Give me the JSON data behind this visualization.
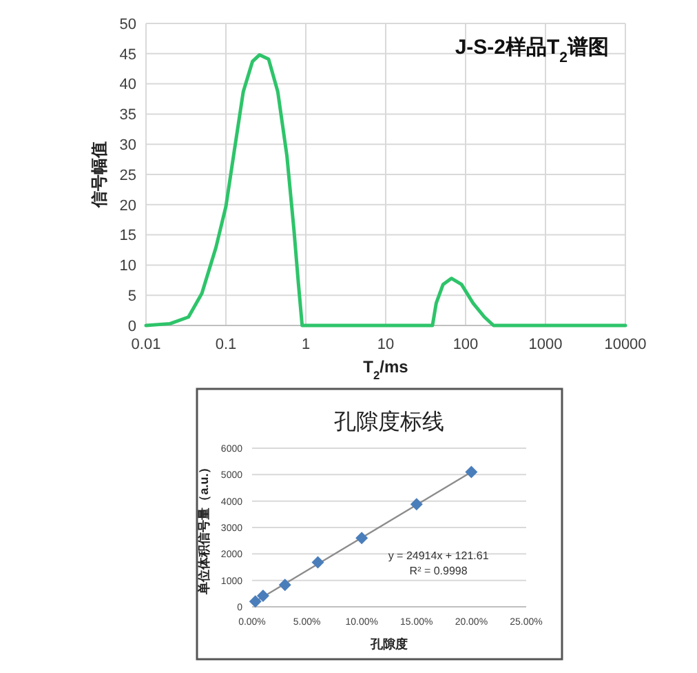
{
  "chart_data": [
    {
      "type": "line",
      "title": "J-S-2样品T$_{2}$谱图",
      "xlabel": "T$_{2}$/ms",
      "ylabel": "信号幅值",
      "log": "x",
      "xlim": [
        0.01,
        10000
      ],
      "xticks": [
        0.01,
        0.1,
        1,
        10,
        100,
        1000,
        10000
      ],
      "ylim": [
        0,
        50
      ],
      "yticks": [
        0,
        5,
        10,
        15,
        20,
        25,
        30,
        35,
        40,
        45,
        50
      ],
      "grid": true,
      "series": [
        {
          "color": "#2ec46a",
          "x": [
            0.01,
            0.02,
            0.034,
            0.05,
            0.075,
            0.1,
            0.127,
            0.165,
            0.215,
            0.263,
            0.342,
            0.446,
            0.58,
            0.71,
            0.81,
            0.9,
            38.5,
            42.9,
            52.3,
            66.4,
            88.8,
            124,
            172,
            224,
            10000
          ],
          "values": [
            0,
            0.3,
            1.4,
            5.3,
            12.9,
            19.7,
            28.8,
            38.7,
            43.7,
            44.8,
            44.1,
            38.7,
            28.1,
            15.9,
            6.8,
            0,
            0,
            3.7,
            6.8,
            7.8,
            6.8,
            3.7,
            1.4,
            0,
            0
          ]
        }
      ]
    },
    {
      "type": "scatter",
      "title": "孔隙度标线",
      "xlabel": "孔隙度",
      "ylabel": "单位体积信号量（a.u.）",
      "xlim": [
        0,
        0.25
      ],
      "xticks": [
        {
          "value": 0,
          "label": "0.00%"
        },
        {
          "value": 0.05,
          "label": "5.00%"
        },
        {
          "value": 0.1,
          "label": "10.00%"
        },
        {
          "value": 0.15,
          "label": "15.00%"
        },
        {
          "value": 0.2,
          "label": "20.00%"
        },
        {
          "value": 0.25,
          "label": "25.00%"
        }
      ],
      "ylim": [
        0,
        6000
      ],
      "yticks": [
        0,
        1000,
        2000,
        3000,
        4000,
        5000,
        6000
      ],
      "grid": "y",
      "series": [
        {
          "type": "scatter",
          "marker": "diamond",
          "color": "#4a7ebb",
          "x": [
            0.003,
            0.01,
            0.03,
            0.06,
            0.1,
            0.15,
            0.2
          ],
          "values": [
            200,
            420,
            830,
            1680,
            2600,
            3880,
            5100
          ]
        },
        {
          "type": "line",
          "color": "#8c8c8c",
          "x": [
            0.003,
            0.2
          ],
          "values": [
            200,
            5100
          ]
        }
      ],
      "annotations": [
        "y = 24914x + 121.61",
        "R² = 0.9998"
      ]
    }
  ]
}
